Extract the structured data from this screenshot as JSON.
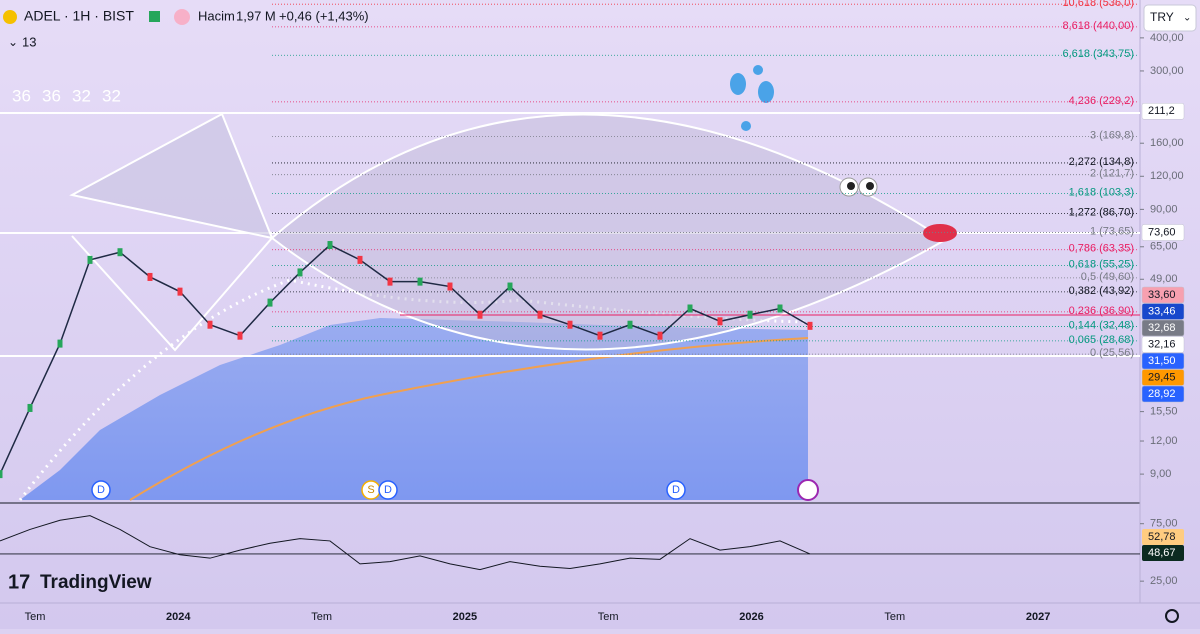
{
  "header": {
    "symbol": "ADEL · 1H · BIST",
    "volume_label": "Hacim",
    "volume": "1,97 M",
    "change": "+0,46 (+1,43%)",
    "indicator_count": "13",
    "values_row": [
      "36",
      "36",
      "32",
      "32"
    ],
    "currency": "TRY"
  },
  "price_chart": {
    "scale": "log",
    "ylim": [
      7,
      556
    ],
    "yticks": [
      {
        "value": 400,
        "label": "400,00"
      },
      {
        "value": 300,
        "label": "300,00"
      },
      {
        "value": 160,
        "label": "160,00"
      },
      {
        "value": 120,
        "label": "120,00"
      },
      {
        "value": 90,
        "label": "90,00"
      },
      {
        "value": 65,
        "label": "65,00"
      },
      {
        "value": 49,
        "label": "49,00"
      },
      {
        "value": 15.5,
        "label": "15,50"
      },
      {
        "value": 12,
        "label": "12,00"
      },
      {
        "value": 9,
        "label": "9,00"
      }
    ],
    "closes": [
      9,
      16,
      28,
      58,
      62,
      50,
      44,
      33,
      30,
      40,
      52,
      66,
      58,
      48,
      48,
      46,
      36,
      46,
      36,
      33,
      30,
      33,
      30,
      38,
      34,
      36,
      38,
      32.68
    ],
    "line_color": "#1f2a44",
    "fib_levels": [
      {
        "label": "10,618 (536,0)",
        "price": 536,
        "color": "#f23645"
      },
      {
        "label": "8,618 (440,00)",
        "price": 440,
        "color": "#e91e63"
      },
      {
        "label": "6,618 (343,75)",
        "price": 343.75,
        "color": "#089981"
      },
      {
        "label": "4,236 (229,2)",
        "price": 229.2,
        "color": "#e91e63"
      },
      {
        "label": "3 (169,8)",
        "price": 169.8,
        "color": "#787b86"
      },
      {
        "label": "2,272 (134,8)",
        "price": 134.8,
        "color": "#131722"
      },
      {
        "label": "2 (121,7)",
        "price": 121.7,
        "color": "#787b86"
      },
      {
        "label": "1,618 (103,3)",
        "price": 103.3,
        "color": "#089981"
      },
      {
        "label": "1,272 (86,70)",
        "price": 86.7,
        "color": "#131722"
      },
      {
        "label": "1 (73,65)",
        "price": 73.65,
        "color": "#787b86"
      },
      {
        "label": "0,786 (63,35)",
        "price": 63.35,
        "color": "#e91e63"
      },
      {
        "label": "0,618 (55,25)",
        "price": 55.25,
        "color": "#089981"
      },
      {
        "label": "0,5 (49,60)",
        "price": 49.6,
        "color": "#787b86"
      },
      {
        "label": "0,382 (43,92)",
        "price": 43.92,
        "color": "#131722"
      },
      {
        "label": "0,236 (36,90)",
        "price": 36.9,
        "color": "#e91e63"
      },
      {
        "label": "0,144 (32,48)",
        "price": 32.48,
        "color": "#089981"
      },
      {
        "label": "0,065 (28,68)",
        "price": 28.68,
        "color": "#089981"
      },
      {
        "label": "0 (25,56)",
        "price": 25.56,
        "color": "#787b86"
      }
    ],
    "price_tags": [
      {
        "value": 211.2,
        "label": "211,2",
        "bg": "#ffffff",
        "fg": "#131722"
      },
      {
        "value": 73.6,
        "label": "73,60",
        "bg": "#ffffff",
        "fg": "#131722"
      },
      {
        "value": 33.6,
        "label": "33,60",
        "bg": "#f7a0b0",
        "fg": "#131722"
      },
      {
        "value": 33.46,
        "label": "33,46",
        "bg": "#1848cc",
        "fg": "#ffffff"
      },
      {
        "value": 32.68,
        "label": "32,68",
        "bg": "#787b86",
        "fg": "#ffffff"
      },
      {
        "value": 32.16,
        "label": "32,16",
        "bg": "#ffffff",
        "fg": "#131722"
      },
      {
        "value": 31.5,
        "label": "31,50",
        "bg": "#2962ff",
        "fg": "#ffffff"
      },
      {
        "value": 29.45,
        "label": "29,45",
        "bg": "#ff9800",
        "fg": "#131722"
      },
      {
        "value": 28.92,
        "label": "28,92",
        "bg": "#2962ff",
        "fg": "#ffffff"
      }
    ],
    "events": [
      "D",
      "S",
      "D",
      "D"
    ]
  },
  "rsi_chart": {
    "ylim": [
      6,
      93
    ],
    "yticks": [
      {
        "value": 75,
        "label": "75,00"
      },
      {
        "value": 25,
        "label": "25,00"
      }
    ],
    "values": [
      60,
      70,
      78,
      82,
      70,
      55,
      48,
      45,
      52,
      58,
      62,
      60,
      40,
      42,
      47,
      40,
      35,
      42,
      38,
      36,
      40,
      45,
      44,
      62,
      52,
      55,
      60,
      48.67
    ],
    "line_color": "#131722",
    "tags": [
      {
        "value": 52.78,
        "label": "52,78",
        "bg": "#ffcc80",
        "fg": "#131722"
      },
      {
        "value": 48.67,
        "label": "48,67",
        "bg": "#0b2a20",
        "fg": "#ffffff"
      }
    ]
  },
  "time_axis": [
    "Tem",
    "2024",
    "Tem",
    "2025",
    "Tem",
    "2026",
    "Tem",
    "2027"
  ],
  "brand": "TradingView"
}
